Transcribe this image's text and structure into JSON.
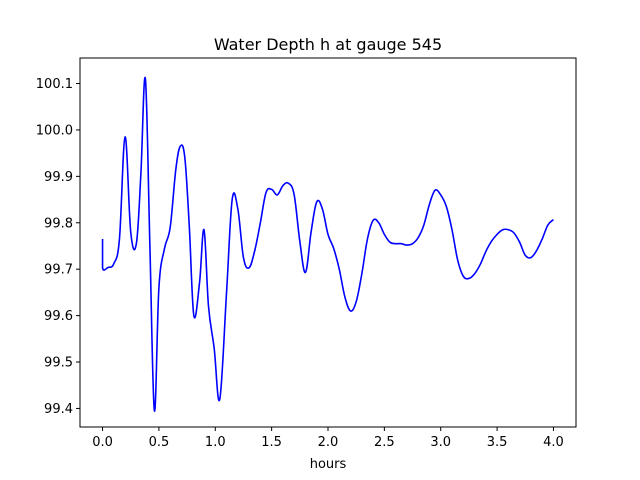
{
  "chart_data": {
    "type": "line",
    "title": "Water Depth h at gauge 545",
    "xlabel": "hours",
    "ylabel": "",
    "xlim": [
      -0.2,
      4.2
    ],
    "ylim": [
      99.36,
      100.155
    ],
    "xticks": [
      0.0,
      0.5,
      1.0,
      1.5,
      2.0,
      2.5,
      3.0,
      3.5,
      4.0
    ],
    "xtick_labels": [
      "0.0",
      "0.5",
      "1.0",
      "1.5",
      "2.0",
      "2.5",
      "3.0",
      "3.5",
      "4.0"
    ],
    "yticks": [
      99.4,
      99.5,
      99.6,
      99.7,
      99.8,
      99.9,
      100.0,
      100.1
    ],
    "ytick_labels": [
      "99.4",
      "99.5",
      "99.6",
      "99.7",
      "99.8",
      "99.9",
      "100.0",
      "100.1"
    ],
    "grid": false,
    "series": [
      {
        "color": "#0000ff",
        "x": [
          0.0,
          0.0,
          0.05,
          0.1,
          0.15,
          0.2,
          0.25,
          0.3,
          0.34,
          0.38,
          0.42,
          0.46,
          0.5,
          0.55,
          0.6,
          0.65,
          0.69,
          0.73,
          0.77,
          0.81,
          0.86,
          0.9,
          0.94,
          0.99,
          1.04,
          1.1,
          1.15,
          1.2,
          1.25,
          1.3,
          1.35,
          1.4,
          1.45,
          1.5,
          1.55,
          1.6,
          1.65,
          1.7,
          1.75,
          1.8,
          1.85,
          1.9,
          1.95,
          2.0,
          2.05,
          2.1,
          2.15,
          2.2,
          2.25,
          2.3,
          2.35,
          2.4,
          2.45,
          2.5,
          2.55,
          2.6,
          2.65,
          2.7,
          2.75,
          2.8,
          2.85,
          2.9,
          2.95,
          3.0,
          3.05,
          3.1,
          3.15,
          3.2,
          3.25,
          3.3,
          3.35,
          3.4,
          3.45,
          3.5,
          3.55,
          3.6,
          3.65,
          3.7,
          3.75,
          3.8,
          3.85,
          3.9,
          3.95,
          4.0
        ],
        "y": [
          99.765,
          99.703,
          99.704,
          99.712,
          99.765,
          99.985,
          99.78,
          99.755,
          99.905,
          100.11,
          99.75,
          99.395,
          99.66,
          99.745,
          99.79,
          99.915,
          99.965,
          99.94,
          99.79,
          99.6,
          99.67,
          99.785,
          99.62,
          99.53,
          99.42,
          99.65,
          99.85,
          99.83,
          99.725,
          99.703,
          99.74,
          99.8,
          99.865,
          99.872,
          99.86,
          99.88,
          99.885,
          99.86,
          99.76,
          99.693,
          99.78,
          99.845,
          99.83,
          99.775,
          99.745,
          99.7,
          99.64,
          99.61,
          99.63,
          99.69,
          99.765,
          99.805,
          99.8,
          99.775,
          99.758,
          99.755,
          99.755,
          99.752,
          99.755,
          99.768,
          99.795,
          99.84,
          99.87,
          99.86,
          99.835,
          99.785,
          99.72,
          99.685,
          99.68,
          99.69,
          99.71,
          99.738,
          99.76,
          99.775,
          99.785,
          99.785,
          99.778,
          99.758,
          99.73,
          99.725,
          99.74,
          99.765,
          99.795,
          99.807
        ]
      }
    ]
  }
}
